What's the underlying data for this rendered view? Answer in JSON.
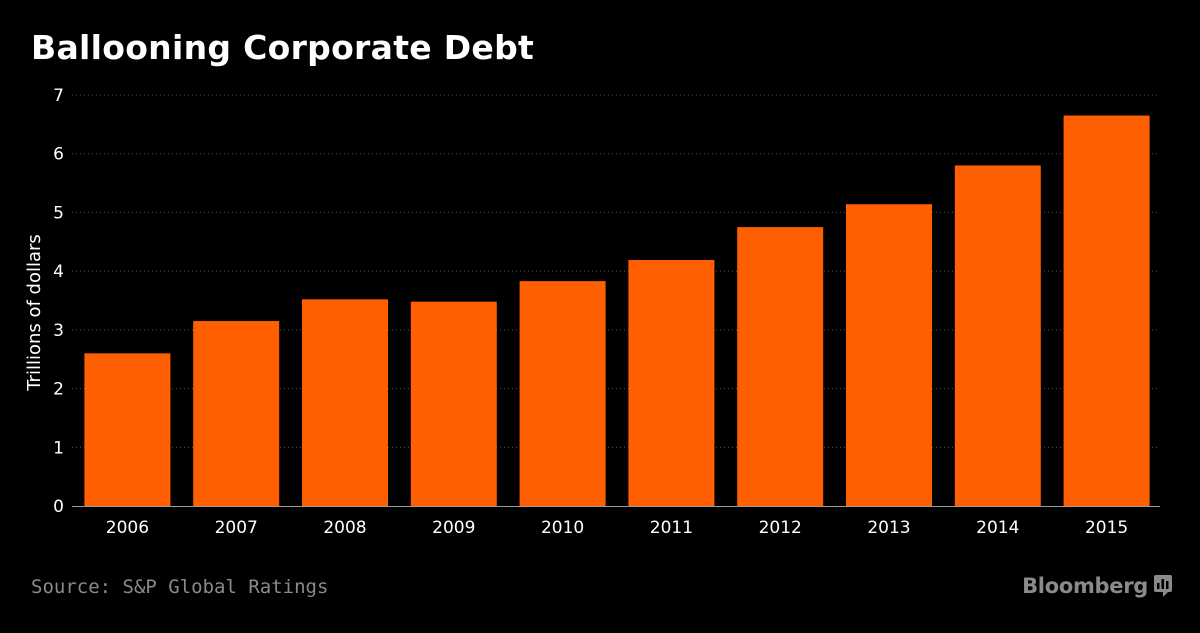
{
  "title": "Ballooning Corporate Debt",
  "source": "Source: S&P Global Ratings",
  "brand": "Bloomberg",
  "brand_icon": "bloomberg-logo-icon",
  "colors": {
    "background": "#000000",
    "bar": "#ff5f00",
    "text": "#ffffff",
    "muted": "#8a8a8a",
    "grid": "#5a5a5a"
  },
  "chart_data": {
    "type": "bar",
    "categories": [
      "2006",
      "2007",
      "2008",
      "2009",
      "2010",
      "2011",
      "2012",
      "2013",
      "2014",
      "2015"
    ],
    "values": [
      2.6,
      3.15,
      3.52,
      3.48,
      3.83,
      4.19,
      4.75,
      5.14,
      5.8,
      6.65
    ],
    "title": "Ballooning Corporate Debt",
    "xlabel": "",
    "ylabel": "Trillions of dollars",
    "ylim": [
      0,
      7
    ],
    "yticks": [
      "0",
      "1",
      "2",
      "3",
      "4",
      "5",
      "6",
      "7"
    ],
    "grid": true,
    "legend": "none"
  }
}
